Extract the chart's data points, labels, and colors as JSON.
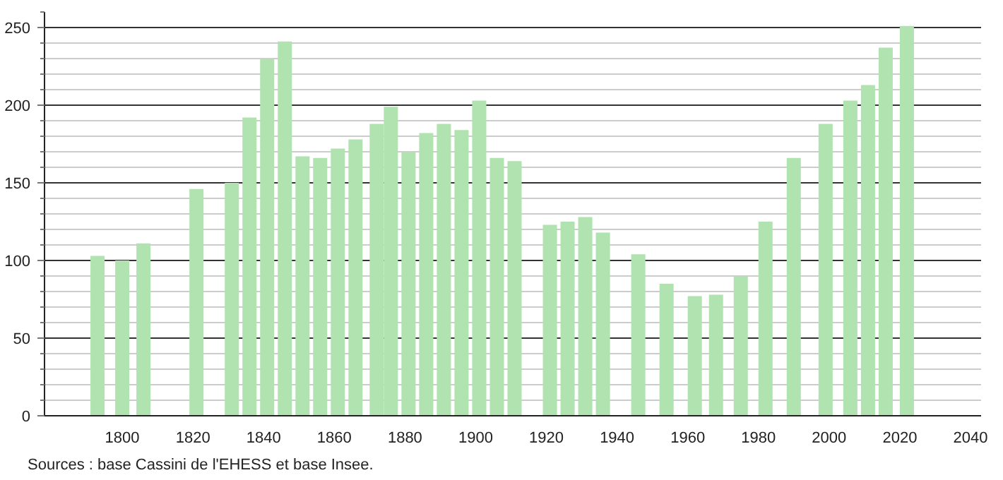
{
  "chart_data": {
    "type": "bar",
    "x": [
      1793,
      1800,
      1806,
      1821,
      1831,
      1836,
      1841,
      1846,
      1851,
      1856,
      1861,
      1866,
      1872,
      1876,
      1881,
      1886,
      1891,
      1896,
      1901,
      1906,
      1911,
      1921,
      1926,
      1931,
      1936,
      1946,
      1954,
      1962,
      1968,
      1975,
      1982,
      1990,
      1999,
      2006,
      2011,
      2016,
      2022
    ],
    "values": [
      103,
      100,
      111,
      146,
      150,
      192,
      230,
      241,
      167,
      166,
      172,
      178,
      188,
      199,
      170,
      182,
      188,
      184,
      203,
      166,
      164,
      123,
      125,
      128,
      118,
      104,
      85,
      77,
      78,
      90,
      125,
      166,
      188,
      203,
      213,
      237,
      251
    ],
    "color": "#b0e3b0",
    "xlim": [
      1778,
      2043
    ],
    "xticks": [
      1800,
      1820,
      1840,
      1860,
      1880,
      1900,
      1920,
      1940,
      1960,
      1980,
      2000,
      2020,
      2040
    ],
    "ylim": [
      0,
      260
    ],
    "yticks": [
      0,
      50,
      100,
      150,
      200,
      250
    ],
    "grid": "y",
    "annotations": [
      "Sources : base Cassini de l'EHESS et base Insee."
    ]
  }
}
